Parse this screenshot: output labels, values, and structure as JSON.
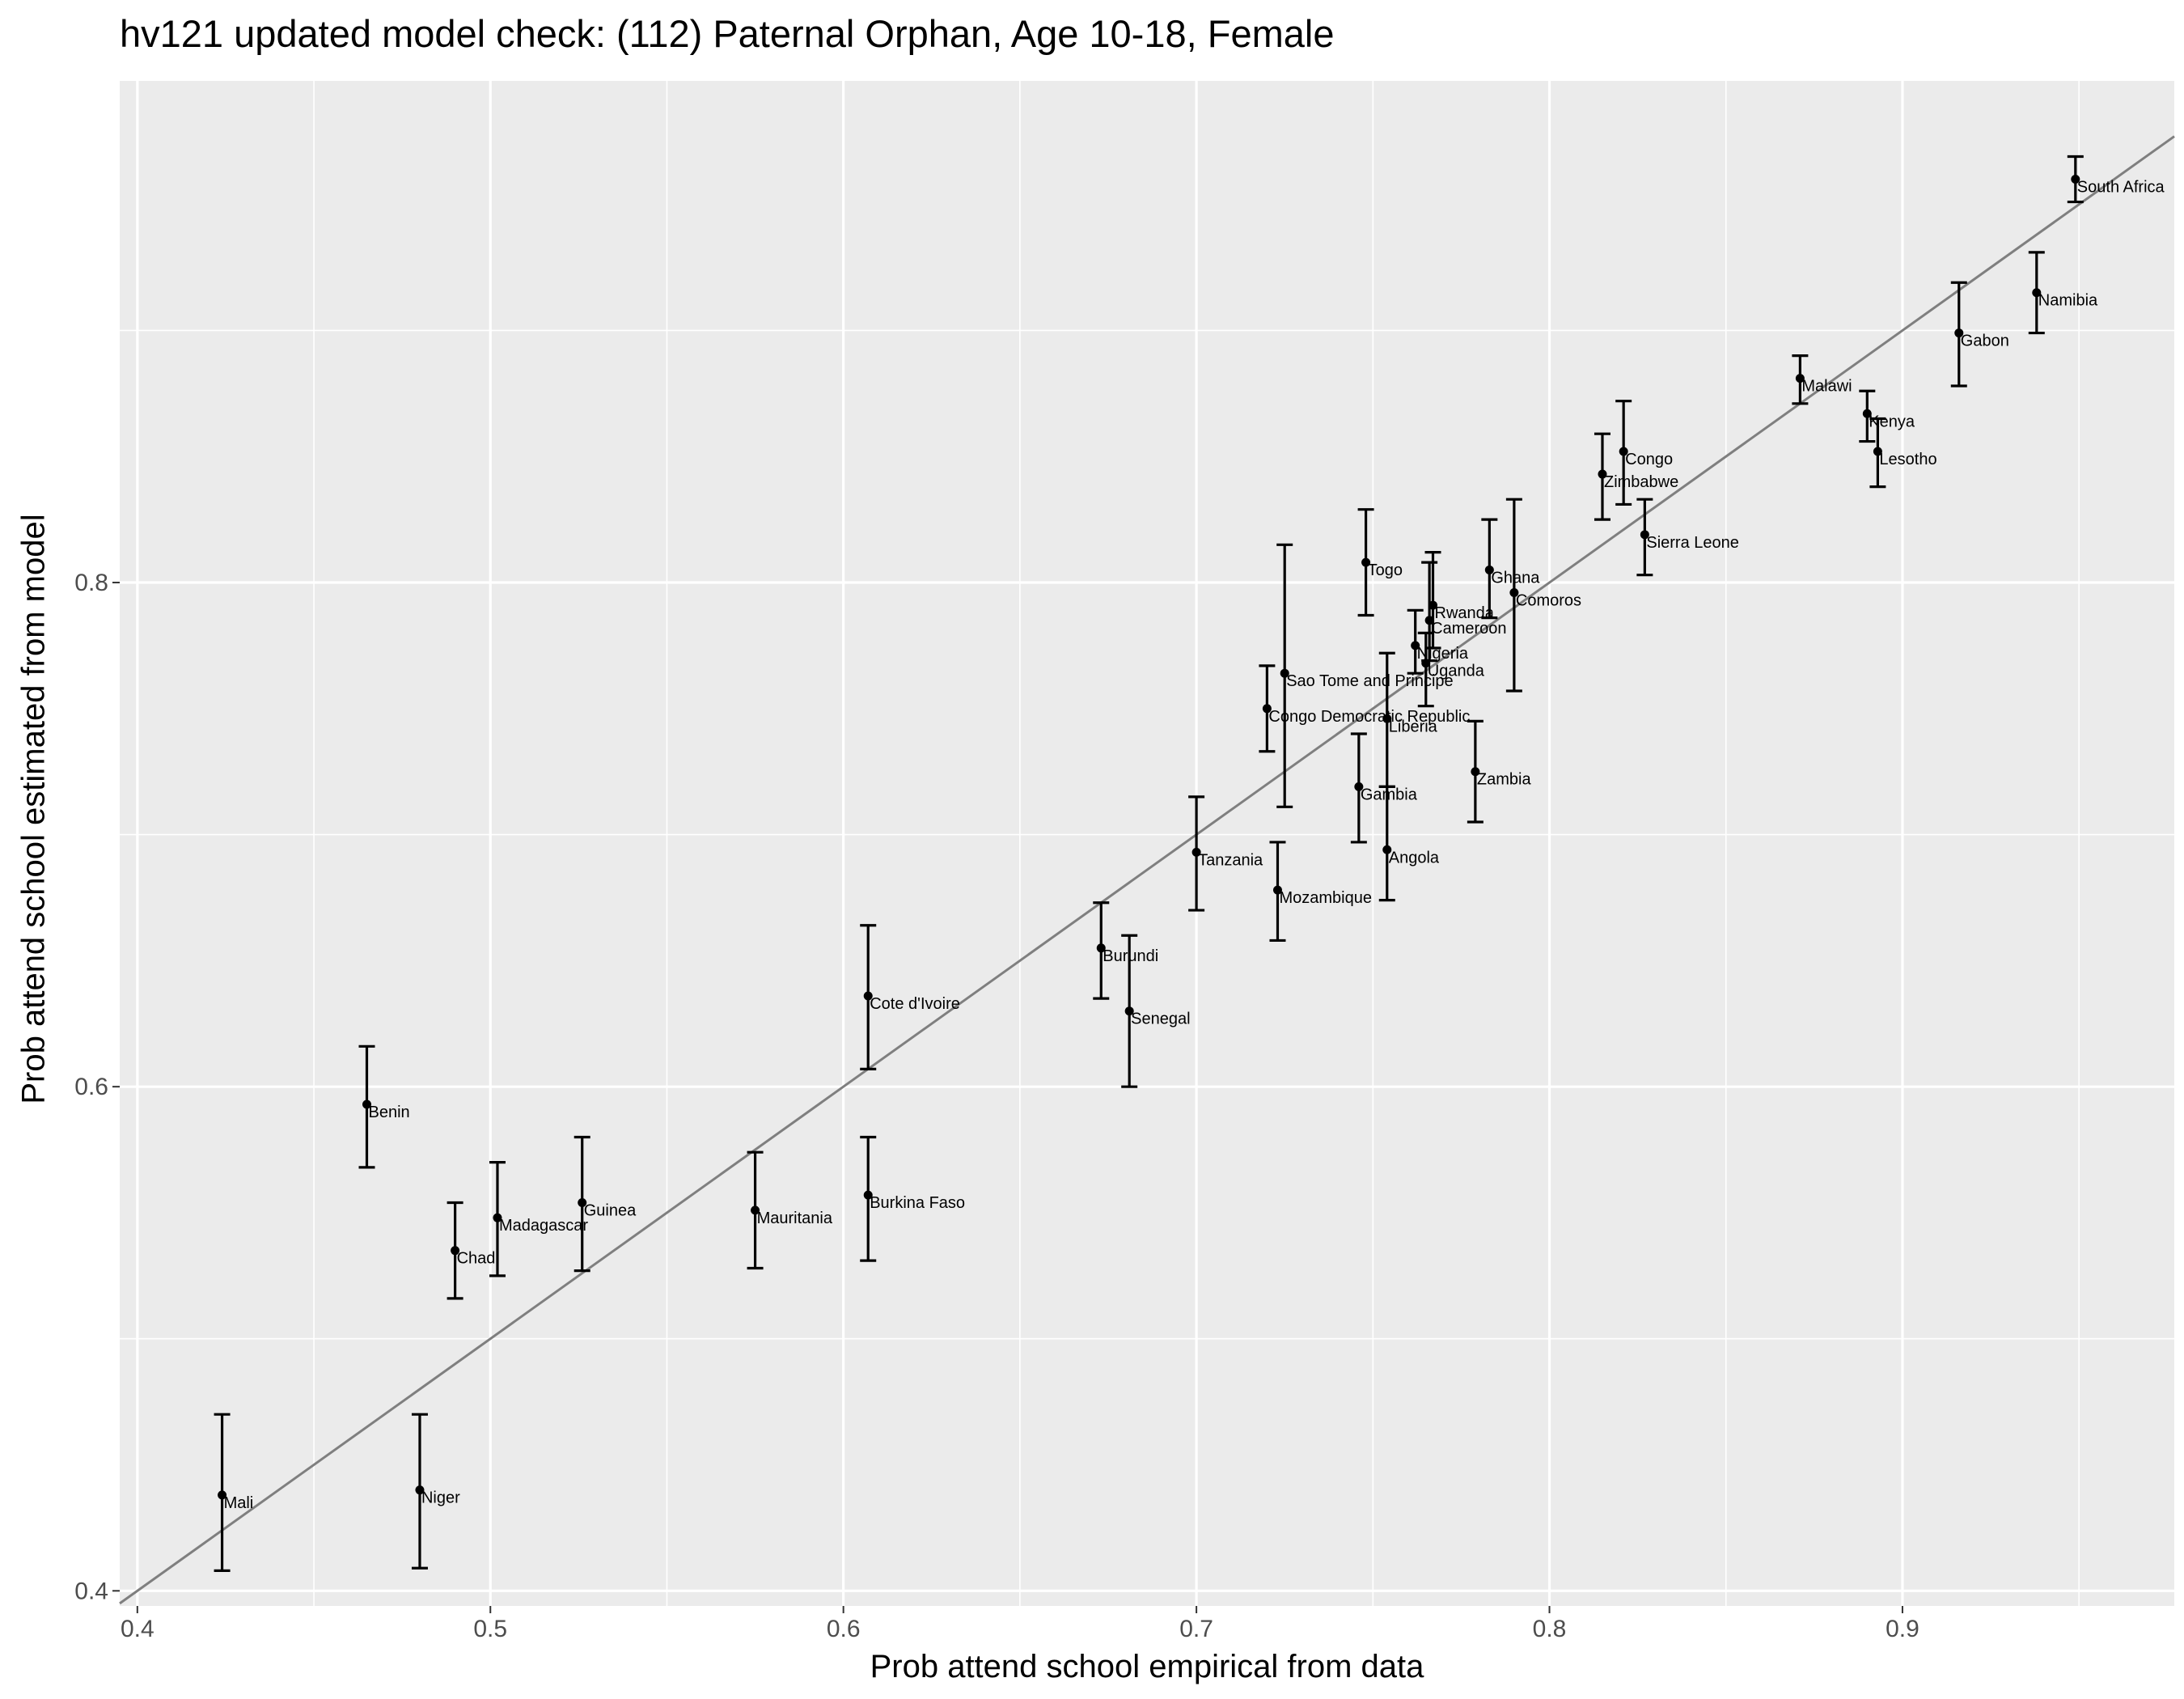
{
  "chart_data": {
    "type": "scatter",
    "title": "hv121 updated model check: (112) Paternal Orphan, Age 10-18, Female",
    "xlabel": "Prob attend school empirical from data",
    "ylabel": "Prob attend school estimated from model",
    "xlim": [
      0.395,
      0.977
    ],
    "ylim": [
      0.394,
      0.999
    ],
    "xticks": [
      0.4,
      0.5,
      0.6,
      0.7,
      0.8,
      0.9
    ],
    "yticks": [
      0.4,
      0.6,
      0.8
    ],
    "grid": true,
    "reference_line": "y = x",
    "points": [
      {
        "name": "South Africa",
        "x": 0.949,
        "y": 0.96,
        "ylo": 0.951,
        "yhi": 0.969
      },
      {
        "name": "Namibia",
        "x": 0.938,
        "y": 0.915,
        "ylo": 0.899,
        "yhi": 0.931
      },
      {
        "name": "Gabon",
        "x": 0.916,
        "y": 0.899,
        "ylo": 0.878,
        "yhi": 0.919
      },
      {
        "name": "Malawi",
        "x": 0.871,
        "y": 0.881,
        "ylo": 0.871,
        "yhi": 0.89
      },
      {
        "name": "Kenya",
        "x": 0.89,
        "y": 0.867,
        "ylo": 0.856,
        "yhi": 0.876
      },
      {
        "name": "Lesotho",
        "x": 0.893,
        "y": 0.852,
        "ylo": 0.838,
        "yhi": 0.865
      },
      {
        "name": "Congo",
        "x": 0.821,
        "y": 0.852,
        "ylo": 0.831,
        "yhi": 0.872
      },
      {
        "name": "Zimbabwe",
        "x": 0.815,
        "y": 0.843,
        "ylo": 0.825,
        "yhi": 0.859
      },
      {
        "name": "Sierra Leone",
        "x": 0.827,
        "y": 0.819,
        "ylo": 0.803,
        "yhi": 0.833
      },
      {
        "name": "Togo",
        "x": 0.748,
        "y": 0.808,
        "ylo": 0.787,
        "yhi": 0.829
      },
      {
        "name": "Ghana",
        "x": 0.783,
        "y": 0.805,
        "ylo": 0.786,
        "yhi": 0.825
      },
      {
        "name": "Comoros",
        "x": 0.79,
        "y": 0.796,
        "ylo": 0.757,
        "yhi": 0.833
      },
      {
        "name": "Rwanda",
        "x": 0.767,
        "y": 0.791,
        "ylo": 0.774,
        "yhi": 0.812
      },
      {
        "name": "Cameroon",
        "x": 0.766,
        "y": 0.785,
        "ylo": 0.769,
        "yhi": 0.808
      },
      {
        "name": "Nigeria",
        "x": 0.762,
        "y": 0.775,
        "ylo": 0.764,
        "yhi": 0.789
      },
      {
        "name": "Uganda",
        "x": 0.765,
        "y": 0.768,
        "ylo": 0.751,
        "yhi": 0.78
      },
      {
        "name": "Sao Tome and Principe",
        "x": 0.725,
        "y": 0.764,
        "ylo": 0.711,
        "yhi": 0.815
      },
      {
        "name": "Congo Democratic Republic",
        "x": 0.72,
        "y": 0.75,
        "ylo": 0.733,
        "yhi": 0.767
      },
      {
        "name": "Liberia",
        "x": 0.754,
        "y": 0.746,
        "ylo": 0.719,
        "yhi": 0.772
      },
      {
        "name": "Zambia",
        "x": 0.779,
        "y": 0.725,
        "ylo": 0.705,
        "yhi": 0.745
      },
      {
        "name": "Gambia",
        "x": 0.746,
        "y": 0.719,
        "ylo": 0.697,
        "yhi": 0.74
      },
      {
        "name": "Tanzania",
        "x": 0.7,
        "y": 0.693,
        "ylo": 0.67,
        "yhi": 0.715
      },
      {
        "name": "Angola",
        "x": 0.754,
        "y": 0.694,
        "ylo": 0.674,
        "yhi": 0.719
      },
      {
        "name": "Mozambique",
        "x": 0.723,
        "y": 0.678,
        "ylo": 0.658,
        "yhi": 0.697
      },
      {
        "name": "Burundi",
        "x": 0.673,
        "y": 0.655,
        "ylo": 0.635,
        "yhi": 0.673
      },
      {
        "name": "Cote d'Ivoire",
        "x": 0.607,
        "y": 0.636,
        "ylo": 0.607,
        "yhi": 0.664
      },
      {
        "name": "Senegal",
        "x": 0.681,
        "y": 0.63,
        "ylo": 0.6,
        "yhi": 0.66
      },
      {
        "name": "Benin",
        "x": 0.465,
        "y": 0.593,
        "ylo": 0.568,
        "yhi": 0.616
      },
      {
        "name": "Guinea",
        "x": 0.526,
        "y": 0.554,
        "ylo": 0.527,
        "yhi": 0.58
      },
      {
        "name": "Burkina Faso",
        "x": 0.607,
        "y": 0.557,
        "ylo": 0.531,
        "yhi": 0.58
      },
      {
        "name": "Mauritania",
        "x": 0.575,
        "y": 0.551,
        "ylo": 0.528,
        "yhi": 0.574
      },
      {
        "name": "Madagascar",
        "x": 0.502,
        "y": 0.548,
        "ylo": 0.525,
        "yhi": 0.57
      },
      {
        "name": "Chad",
        "x": 0.49,
        "y": 0.535,
        "ylo": 0.516,
        "yhi": 0.554
      },
      {
        "name": "Niger",
        "x": 0.48,
        "y": 0.44,
        "ylo": 0.409,
        "yhi": 0.47
      },
      {
        "name": "Mali",
        "x": 0.424,
        "y": 0.438,
        "ylo": 0.408,
        "yhi": 0.47
      }
    ]
  }
}
